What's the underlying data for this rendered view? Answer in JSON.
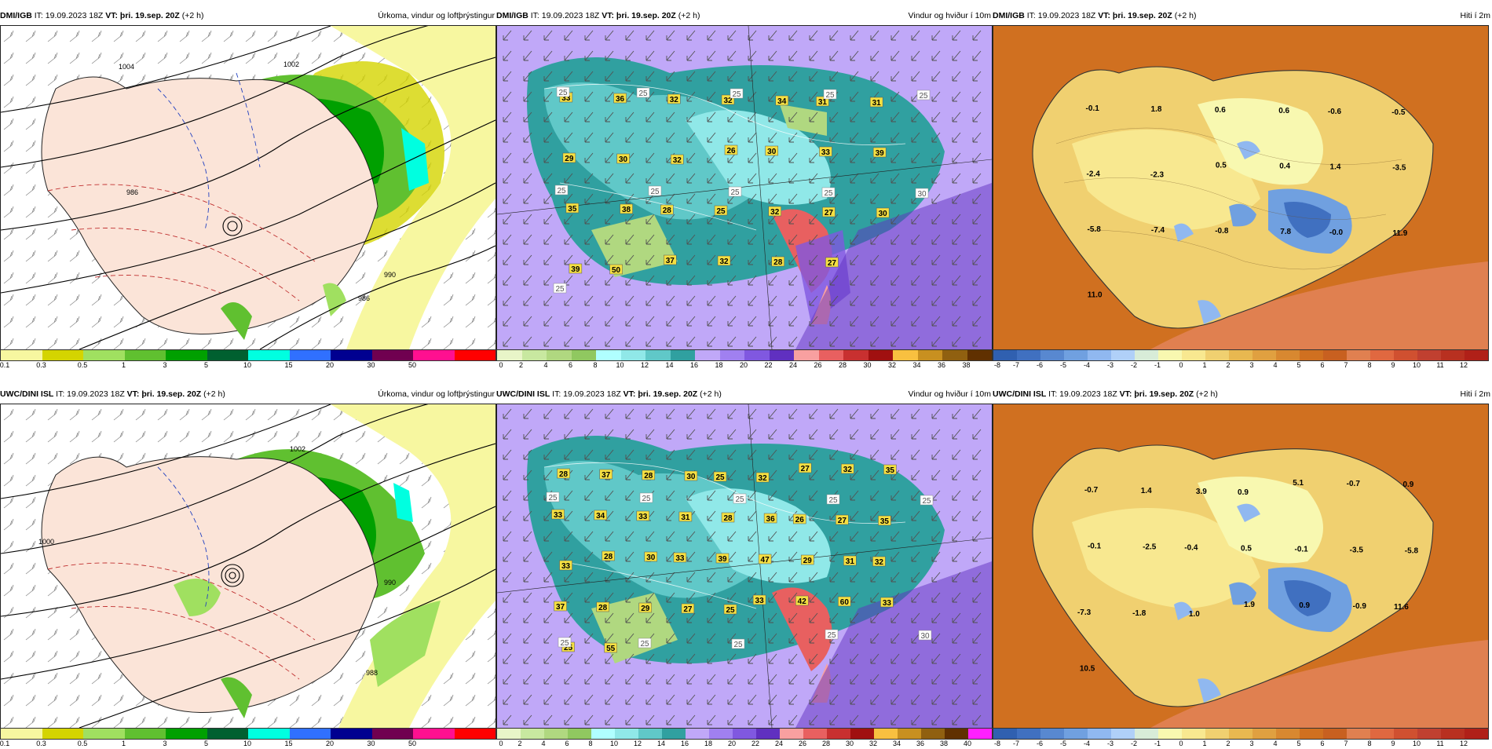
{
  "rows": [
    {
      "model": "DMI/IGB",
      "panels": [
        {
          "kind": "precip",
          "it": "IT: 19.09.2023 18Z",
          "vt": "VT: þri. 19.sep. 20Z",
          "offset": "(+2 h)",
          "title": "Úrkoma, vindur og loftþrýstingur"
        },
        {
          "kind": "wind",
          "it": "IT: 19.09.2023 18Z",
          "vt": "VT: þri. 19.sep. 20Z",
          "offset": "(+2 h)",
          "title": "Vindur og hviður í 10m"
        },
        {
          "kind": "temp",
          "it": "IT: 19.09.2023 18Z",
          "vt": "VT: þri. 19.sep. 20Z",
          "offset": "(+2 h)",
          "title": "Hiti í 2m"
        }
      ],
      "wind_labels": [
        "33",
        "36",
        "32",
        "32",
        "34",
        "31",
        "31",
        "29",
        "30",
        "32",
        "26",
        "30",
        "33",
        "39",
        "35",
        "38",
        "28",
        "25",
        "32",
        "27",
        "30",
        "39",
        "50",
        "37",
        "32",
        "28",
        "27"
      ],
      "gust_labels": [
        "25",
        "25",
        "25",
        "25",
        "25",
        "25",
        "25",
        "25",
        "25",
        "30",
        "25"
      ],
      "temp_labels": [
        "-0.1",
        "1.8",
        "0.6",
        "0.6",
        "-0.6",
        "-0.5",
        "-2.4",
        "-2.3",
        "0.5",
        "0.4",
        "1.4",
        "-3.5",
        "-5.8",
        "-7.4",
        "-0.8",
        "7.8",
        "-0.0",
        "11.9",
        "11.0"
      ]
    },
    {
      "model": "UWC/DINI ISL",
      "panels": [
        {
          "kind": "precip",
          "it": "IT: 19.09.2023 18Z",
          "vt": "VT: þri. 19.sep. 20Z",
          "offset": "(+2 h)",
          "title": "Úrkoma, vindur og loftþrýstingur"
        },
        {
          "kind": "wind",
          "it": "IT: 19.09.2023 18Z",
          "vt": "VT: þri. 19.sep. 20Z",
          "offset": "(+2 h)",
          "title": "Vindur og hviður í 10m"
        },
        {
          "kind": "temp",
          "it": "IT: 19.09.2023 18Z",
          "vt": "VT: þri. 19.sep. 20Z",
          "offset": "(+2 h)",
          "title": "Hiti í 2m"
        }
      ],
      "wind_labels": [
        "28",
        "37",
        "28",
        "30",
        "25",
        "32",
        "27",
        "32",
        "35",
        "33",
        "34",
        "33",
        "31",
        "28",
        "36",
        "26",
        "27",
        "35",
        "33",
        "28",
        "30",
        "33",
        "39",
        "47",
        "29",
        "31",
        "32",
        "37",
        "28",
        "29",
        "27",
        "25",
        "33",
        "42",
        "60",
        "33",
        "25",
        "55"
      ],
      "gust_labels": [
        "25",
        "25",
        "25",
        "25",
        "25",
        "25",
        "25",
        "25",
        "25",
        "30"
      ],
      "temp_labels": [
        "-0.7",
        "1.4",
        "3.9",
        "0.9",
        "5.1",
        "-0.7",
        "0.9",
        "-0.1",
        "-2.5",
        "-0.4",
        "0.5",
        "-0.1",
        "-3.5",
        "-5.8",
        "-7.3",
        "-1.8",
        "1.0",
        "1.9",
        "0.9",
        "-0.9",
        "11.6",
        "10.5"
      ]
    }
  ],
  "legends": {
    "precip": {
      "colors": [
        "#f7f7a0",
        "#d4d400",
        "#a0e060",
        "#60c030",
        "#00a000",
        "#006030",
        "#00ffe0",
        "#3070ff",
        "#000090",
        "#700050",
        "#ff1090",
        "#ff0000"
      ],
      "ticks": [
        "0.1",
        "0.3",
        "0.5",
        "1",
        "3",
        "5",
        "10",
        "15",
        "20",
        "30",
        "50"
      ]
    },
    "wind_top": {
      "colors": [
        "#e8f5c8",
        "#c8e8a0",
        "#b0d880",
        "#90c860",
        "#b0ffff",
        "#90e8e8",
        "#60c8c8",
        "#30a0a0",
        "#c0a8f8",
        "#a080f0",
        "#8058e0",
        "#6030c0",
        "#f8a0a0",
        "#e86060",
        "#c83030",
        "#a01010",
        "#f8c040",
        "#c89020",
        "#906010",
        "#603000"
      ],
      "ticks": [
        "0",
        "2",
        "4",
        "6",
        "8",
        "10",
        "12",
        "14",
        "16",
        "18",
        "20",
        "22",
        "24",
        "26",
        "28",
        "30",
        "32",
        "34",
        "36",
        "38"
      ]
    },
    "wind_bottom": {
      "colors": [
        "#e8f5c8",
        "#c8e8a0",
        "#b0d880",
        "#90c860",
        "#b0ffff",
        "#90e8e8",
        "#60c8c8",
        "#30a0a0",
        "#c0a8f8",
        "#a080f0",
        "#8058e0",
        "#6030c0",
        "#f8a0a0",
        "#e86060",
        "#c83030",
        "#a01010",
        "#f8c040",
        "#c89020",
        "#906010",
        "#603000",
        "#ff20ff"
      ],
      "ticks": [
        "0",
        "2",
        "4",
        "6",
        "8",
        "10",
        "12",
        "14",
        "16",
        "18",
        "20",
        "22",
        "24",
        "26",
        "28",
        "30",
        "32",
        "34",
        "36",
        "38",
        "40"
      ]
    },
    "temp": {
      "colors": [
        "#3060b0",
        "#4070c0",
        "#5888d0",
        "#70a0e0",
        "#90b8f0",
        "#b0d0f8",
        "#d8ecd8",
        "#f8f8b0",
        "#f8e890",
        "#f0d070",
        "#e8b850",
        "#e0a040",
        "#d88830",
        "#d07020",
        "#c86020",
        "#e08050",
        "#e06840",
        "#d05030",
        "#c04030",
        "#b83020",
        "#b02018"
      ],
      "ticks": [
        "-8",
        "-7",
        "-6",
        "-5",
        "-4",
        "-3",
        "-2",
        "-1",
        "0",
        "1",
        "2",
        "3",
        "4",
        "5",
        "6",
        "7",
        "8",
        "9",
        "10",
        "11",
        "12"
      ]
    }
  }
}
